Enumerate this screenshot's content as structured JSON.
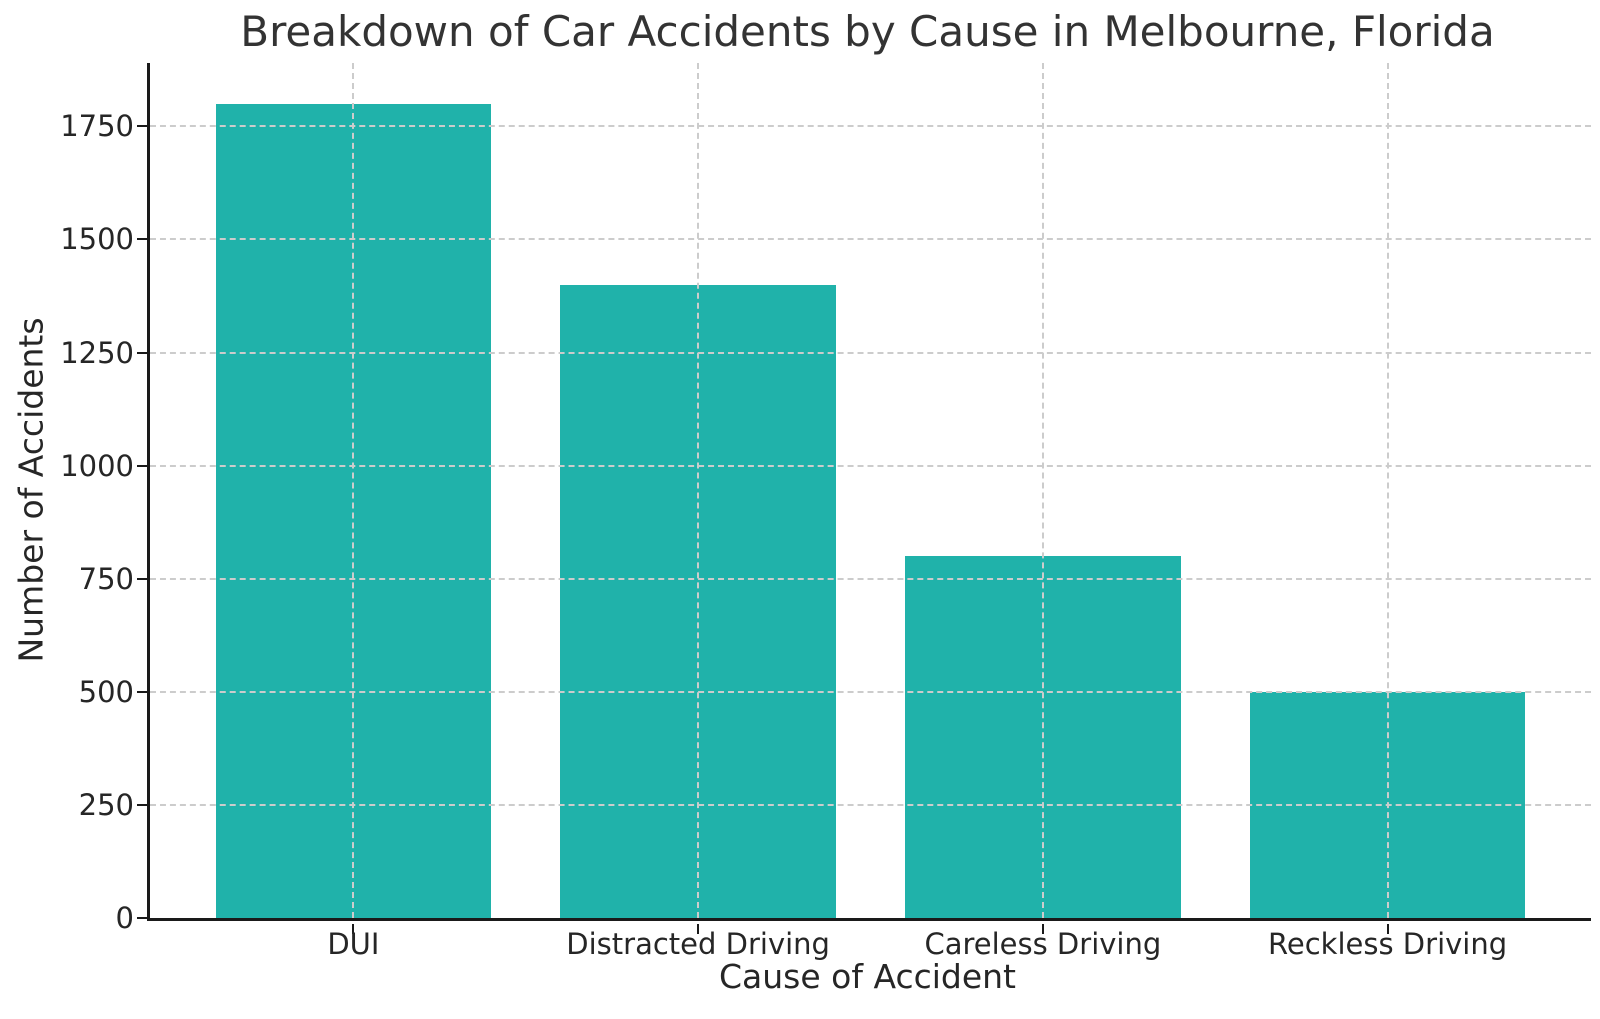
{
  "chart_data": {
    "type": "bar",
    "title": "Breakdown of Car Accidents by Cause in Melbourne, Florida",
    "xlabel": "Cause of Accident",
    "ylabel": "Number of Accidents",
    "categories": [
      "DUI",
      "Distracted Driving",
      "Careless Driving",
      "Reckless Driving"
    ],
    "values": [
      1800,
      1400,
      800,
      500
    ],
    "ylim": [
      0,
      1890
    ],
    "yticks": [
      0,
      250,
      500,
      750,
      1000,
      1250,
      1500,
      1750
    ],
    "bar_color": "#20b2aa",
    "grid_color": "#cccccc",
    "spine_color": "#1a1a1a",
    "text_color": "#262626",
    "title_color": "#333333",
    "grid": "dashed gridlines on both axes, drawn above bars; top and right spines hidden",
    "legend": null
  }
}
